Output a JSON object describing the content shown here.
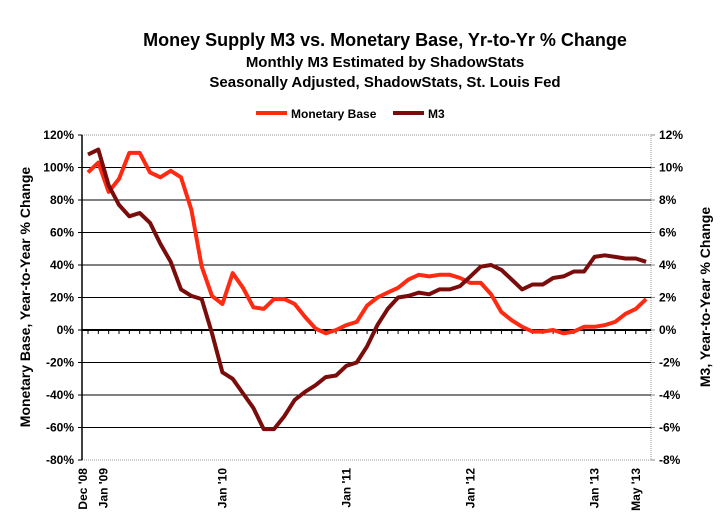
{
  "chart_data": {
    "type": "line",
    "title": "Money Supply M3 vs. Monetary Base, Yr-to-Yr % Change",
    "subtitle_lines": [
      "Monthly M3 Estimated by ShadowStats",
      "Seasonally Adjusted, ShadowStats, St. Louis Fed"
    ],
    "ylabel_left": "Monetary Base, Year-to-Year % Change",
    "ylabel_right": "M3, Year-to-Year % Change",
    "ylim_left": [
      -80,
      120
    ],
    "ylim_right": [
      -8,
      12
    ],
    "yticks_left": [
      "120%",
      "100%",
      "80%",
      "60%",
      "40%",
      "20%",
      "0%",
      "-20%",
      "-40%",
      "-60%",
      "-80%"
    ],
    "yticks_right": [
      "12%",
      "10%",
      "8%",
      "6%",
      "4%",
      "2%",
      "0%",
      "-2%",
      "-4%",
      "-6%",
      "-8%"
    ],
    "grid": true,
    "legend_position": "top",
    "x_tick_labels": [
      {
        "month": "2008-12",
        "label": "Dec '08"
      },
      {
        "month": "2009-01",
        "label": "Jan '09"
      },
      {
        "month": "2010-01",
        "label": "Jan '10"
      },
      {
        "month": "2011-01",
        "label": "Jan '11"
      },
      {
        "month": "2012-01",
        "label": "Jan '12"
      },
      {
        "month": "2013-01",
        "label": "Jan '13"
      },
      {
        "month": "2013-05",
        "label": "May '13"
      }
    ],
    "x": [
      "2008-12",
      "2009-01",
      "2009-02",
      "2009-03",
      "2009-04",
      "2009-05",
      "2009-06",
      "2009-07",
      "2009-08",
      "2009-09",
      "2009-10",
      "2009-11",
      "2009-12",
      "2010-01",
      "2010-02",
      "2010-03",
      "2010-04",
      "2010-05",
      "2010-06",
      "2010-07",
      "2010-08",
      "2010-09",
      "2010-10",
      "2010-11",
      "2010-12",
      "2011-01",
      "2011-02",
      "2011-03",
      "2011-04",
      "2011-05",
      "2011-06",
      "2011-07",
      "2011-08",
      "2011-09",
      "2011-10",
      "2011-11",
      "2011-12",
      "2012-01",
      "2012-02",
      "2012-03",
      "2012-04",
      "2012-05",
      "2012-06",
      "2012-07",
      "2012-08",
      "2012-09",
      "2012-10",
      "2012-11",
      "2012-12",
      "2013-01",
      "2013-02",
      "2013-03",
      "2013-04",
      "2013-05",
      "2013-06"
    ],
    "series": [
      {
        "name": "Monetary Base",
        "axis": "left",
        "color": "#ff2a12",
        "values": [
          97,
          103,
          85,
          93,
          109,
          109,
          97,
          94,
          98,
          94,
          74,
          39,
          21,
          16,
          35,
          26,
          14,
          13,
          19,
          19,
          16,
          8,
          1,
          -2,
          0,
          3,
          5,
          15,
          20,
          23,
          26,
          31,
          34,
          33,
          34,
          34,
          32,
          29,
          29,
          22,
          11,
          6,
          2,
          -1,
          -1,
          0,
          -2,
          -1,
          2,
          2,
          3,
          5,
          10,
          13,
          19
        ]
      },
      {
        "name": "M3",
        "axis": "right",
        "color": "#7a0c0c",
        "values": [
          10.8,
          11.1,
          8.9,
          7.7,
          7.0,
          7.2,
          6.6,
          5.3,
          4.2,
          2.5,
          2.1,
          1.9,
          -0.2,
          -2.6,
          -3.0,
          -3.9,
          -4.8,
          -6.1,
          -6.1,
          -5.3,
          -4.3,
          -3.8,
          -3.4,
          -2.9,
          -2.8,
          -2.2,
          -2.0,
          -1.0,
          0.3,
          1.3,
          2.0,
          2.1,
          2.3,
          2.2,
          2.5,
          2.5,
          2.7,
          3.3,
          3.9,
          4.0,
          3.7,
          3.1,
          2.5,
          2.8,
          2.8,
          3.2,
          3.3,
          3.6,
          3.6,
          4.5,
          4.6,
          4.5,
          4.4,
          4.4,
          4.2
        ]
      }
    ]
  }
}
